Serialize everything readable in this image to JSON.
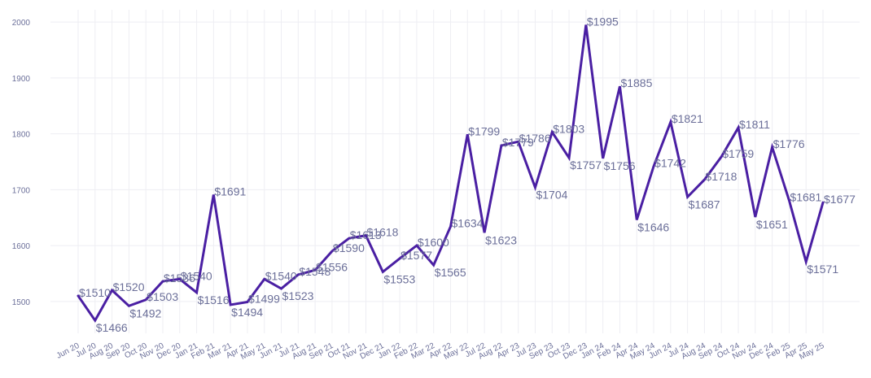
{
  "chart_data": {
    "type": "line",
    "title": "",
    "xlabel": "",
    "ylabel": "",
    "ylim": [
      1443,
      2022
    ],
    "yticks": [
      1500,
      1600,
      1700,
      1800,
      1900,
      2000
    ],
    "grid": true,
    "label_prefix": "$",
    "colors": {
      "line": "#4a1fa3",
      "text": "#6b6f99",
      "grid": "#eeeef3"
    },
    "categories": [
      "Jun 20",
      "Jul 20",
      "Aug 20",
      "Sep 20",
      "Oct 20",
      "Nov 20",
      "Dec 20",
      "Jan 21",
      "Feb 21",
      "Mar 21",
      "Apr 21",
      "May 21",
      "Jun 21",
      "Jul 21",
      "Aug 21",
      "Sep 21",
      "Oct 21",
      "Nov 21",
      "Dec 21",
      "Jan 22",
      "Feb 22",
      "Mar 22",
      "Apr 22",
      "May 22",
      "Jul 22",
      "Aug 22",
      "Apr 23",
      "Jul 23",
      "Sep 23",
      "Oct 23",
      "Dec 23",
      "Jan 24",
      "Feb 24",
      "Apr 24",
      "May 24",
      "Jun 24",
      "Jul 24",
      "Aug 24",
      "Sep 24",
      "Oct 24",
      "Nov 24",
      "Dec 24",
      "Feb 25",
      "Apr 25",
      "May 25"
    ],
    "series": [
      {
        "name": "Price",
        "values": [
          1510,
          1466,
          1520,
          1492,
          1503,
          1536,
          1540,
          1516,
          1691,
          1494,
          1499,
          1540,
          1523,
          1548,
          1556,
          1590,
          1613,
          1618,
          1553,
          1577,
          1600,
          1565,
          1634,
          1799,
          1623,
          1779,
          1786,
          1704,
          1803,
          1757,
          1995,
          1756,
          1885,
          1646,
          1742,
          1821,
          1687,
          1718,
          1759,
          1811,
          1651,
          1776,
          1681,
          1571,
          1677
        ]
      }
    ]
  }
}
